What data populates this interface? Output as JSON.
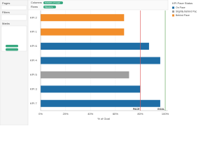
{
  "sidebar": {
    "pages": "Pages",
    "filters": "Filters",
    "marks": "Marks"
  },
  "shelves": {
    "columns": "Columns",
    "columns_pill": "SUM(% of Goal)",
    "rows": "Rows",
    "rows_pill": "Measure"
  },
  "chart_data": {
    "type": "bar",
    "orientation": "horizontal",
    "x_label": "% of Goal",
    "categories": [
      "KPI 2",
      "KPI 1",
      "KPI 6",
      "KPI 4",
      "KPI 5",
      "KPI 3",
      "KPI 7"
    ],
    "values": [
      67,
      67,
      87,
      96,
      71,
      80,
      96
    ],
    "colors": [
      "#f28e2b",
      "#f28e2b",
      "#1f6ea6",
      "#1f6ea6",
      "#a0a0a0",
      "#1f6ea6",
      "#1f6ea6"
    ],
    "xlim": [
      0,
      102
    ],
    "xticks": [
      {
        "value": 0,
        "label": "0%"
      },
      {
        "value": 20,
        "label": "20%"
      },
      {
        "value": 40,
        "label": "40%"
      },
      {
        "value": 60,
        "label": "60%"
      },
      {
        "value": 80,
        "label": "80%"
      },
      {
        "value": 100,
        "label": "100%"
      }
    ],
    "grid": true,
    "reference_lines": [
      {
        "label": "PACE",
        "value": 80,
        "color": "#e05555"
      },
      {
        "label": "GOAL",
        "value": 100,
        "color": "#59a14f"
      }
    ],
    "legend": {
      "title": "KPI Pace Status",
      "position": "right",
      "items": [
        {
          "name": "On Pace",
          "color": "#1f6ea6"
        },
        {
          "name": "Slightly Behind Pace",
          "color": "#a0a0a0"
        },
        {
          "name": "Behind Pace",
          "color": "#f28e2b"
        }
      ]
    }
  }
}
